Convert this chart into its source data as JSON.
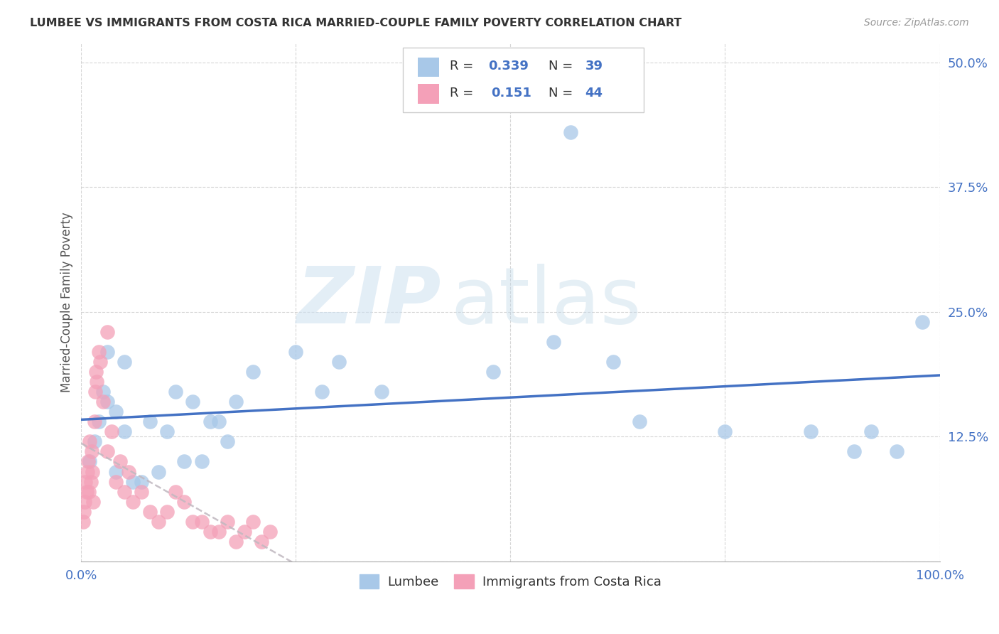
{
  "title": "LUMBEE VS IMMIGRANTS FROM COSTA RICA MARRIED-COUPLE FAMILY POVERTY CORRELATION CHART",
  "source": "Source: ZipAtlas.com",
  "ylabel": "Married-Couple Family Poverty",
  "xlim": [
    0,
    100
  ],
  "ylim": [
    0,
    52
  ],
  "yticks": [
    0,
    12.5,
    25.0,
    37.5,
    50.0
  ],
  "xticks": [
    0,
    25,
    50,
    75,
    100
  ],
  "xtick_labels": [
    "0.0%",
    "",
    "",
    "",
    "100.0%"
  ],
  "ytick_labels": [
    "",
    "12.5%",
    "25.0%",
    "37.5%",
    "50.0%"
  ],
  "blue_scatter_color": "#a8c8e8",
  "pink_scatter_color": "#f4a0b8",
  "blue_line_color": "#4472c4",
  "pink_line_color": "#c0b8c0",
  "lumbee_x": [
    1,
    1.5,
    2,
    2.5,
    3,
    3,
    4,
    4,
    5,
    5,
    6,
    7,
    8,
    9,
    10,
    11,
    12,
    13,
    14,
    15,
    16,
    17,
    18,
    20,
    25,
    28,
    30,
    35,
    48,
    55,
    62,
    65,
    75,
    85,
    90,
    92,
    95,
    98,
    57
  ],
  "lumbee_y": [
    10,
    12,
    14,
    17,
    21,
    16,
    15,
    9,
    20,
    13,
    8,
    8,
    14,
    9,
    13,
    17,
    10,
    16,
    10,
    14,
    14,
    12,
    16,
    19,
    21,
    17,
    20,
    17,
    19,
    22,
    20,
    14,
    13,
    13,
    11,
    13,
    11,
    24,
    43
  ],
  "costa_rica_x": [
    0.2,
    0.3,
    0.4,
    0.5,
    0.6,
    0.7,
    0.8,
    0.9,
    1.0,
    1.1,
    1.2,
    1.3,
    1.4,
    1.5,
    1.6,
    1.7,
    1.8,
    2.0,
    2.2,
    2.5,
    3.0,
    3.5,
    4.0,
    4.5,
    5.0,
    5.5,
    6.0,
    7.0,
    8.0,
    9.0,
    10.0,
    11.0,
    12.0,
    13.0,
    14.0,
    15.0,
    16.0,
    17.0,
    18.0,
    19.0,
    20.0,
    21.0,
    22.0,
    3.0
  ],
  "costa_rica_y": [
    4,
    5,
    6,
    8,
    7,
    9,
    10,
    7,
    12,
    8,
    11,
    9,
    6,
    14,
    17,
    19,
    18,
    21,
    20,
    16,
    11,
    13,
    8,
    10,
    7,
    9,
    6,
    7,
    5,
    4,
    5,
    7,
    6,
    4,
    4,
    3,
    3,
    4,
    2,
    3,
    4,
    2,
    3,
    23
  ]
}
